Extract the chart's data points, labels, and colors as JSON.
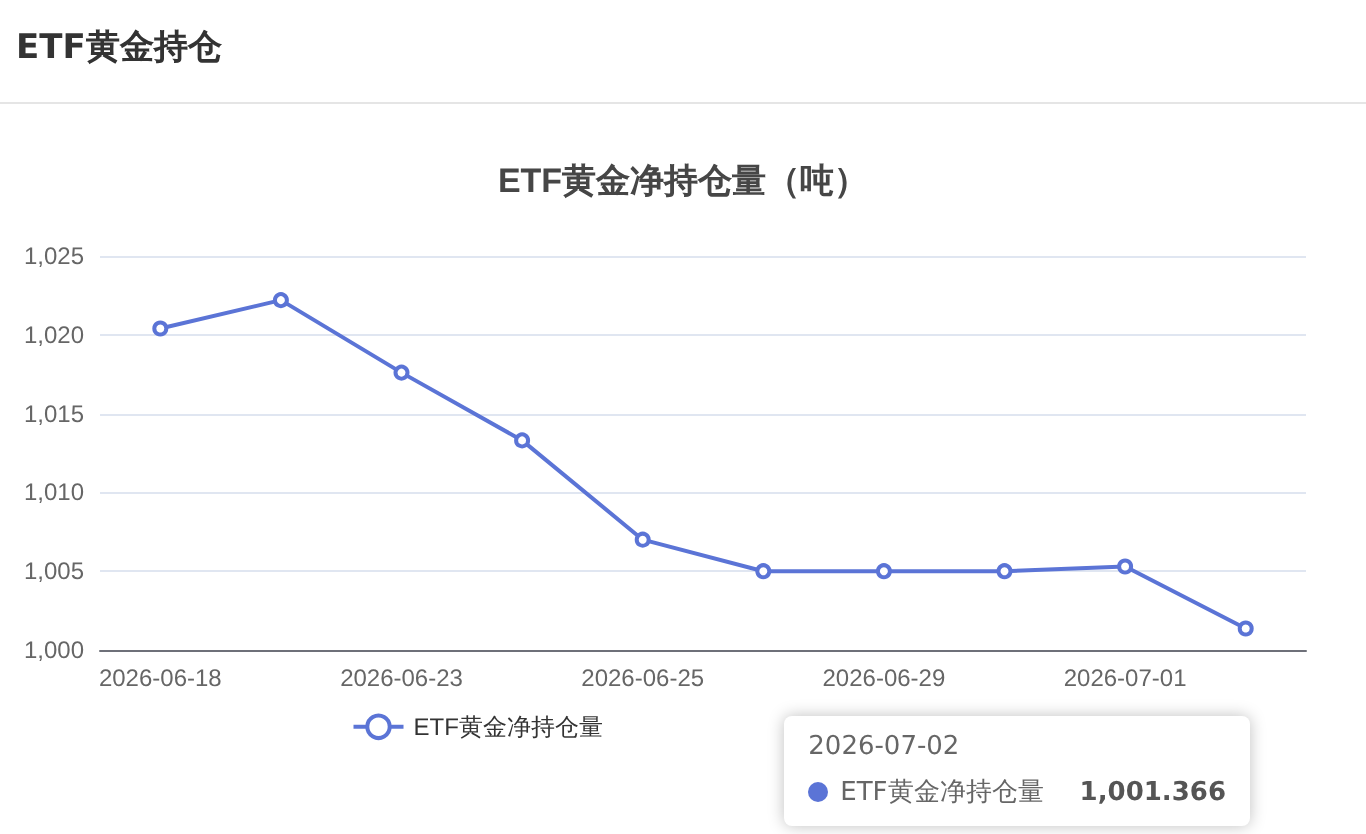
{
  "chart_data": {
    "type": "line",
    "subtitle": "ETF黄金持仓",
    "title": "ETF黄金净持仓量（吨）",
    "categories": [
      "2026-06-18",
      null,
      "2026-06-23",
      null,
      "2026-06-25",
      null,
      "2026-06-29",
      null,
      "2026-07-01",
      null
    ],
    "series": [
      {
        "name": "ETF黄金净持仓量",
        "color": "#5b74d6",
        "values": [
          1020.4,
          1022.2,
          1017.6,
          1013.3,
          1007.0,
          1005.0,
          1005.0,
          1005.0,
          1005.3,
          1001.366
        ]
      }
    ],
    "ylim": [
      1000,
      1025
    ],
    "yticks": [
      {
        "value": 1000,
        "label": "1,000"
      },
      {
        "value": 1005,
        "label": "1,005"
      },
      {
        "value": 1010,
        "label": "1,010"
      },
      {
        "value": 1015,
        "label": "1,015"
      },
      {
        "value": 1020,
        "label": "1,020"
      },
      {
        "value": 1025,
        "label": "1,025"
      }
    ],
    "grid": "y",
    "legend": "bottom",
    "marker": "circle",
    "line_style": "solid",
    "annotations": [
      "2026-07-02",
      "1,001.366"
    ]
  }
}
